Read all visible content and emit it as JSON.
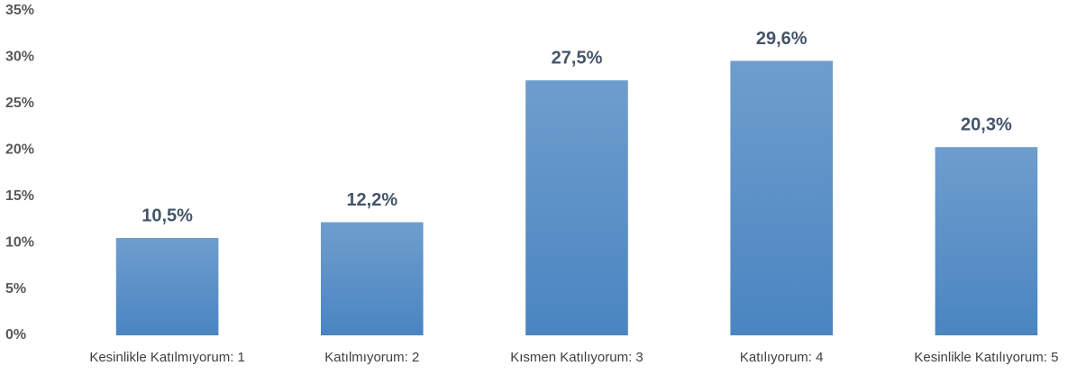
{
  "chart_data": {
    "type": "bar",
    "categories": [
      "Kesinlikle Katılmıyorum: 1",
      "Katılmıyorum: 2",
      "Kısmen Katılıyorum: 3",
      "Katılıyorum: 4",
      "Kesinlikle Katılıyorum: 5"
    ],
    "values": [
      10.5,
      12.2,
      27.5,
      29.6,
      20.3
    ],
    "value_labels": [
      "10,5%",
      "12,2%",
      "27,5%",
      "29,6%",
      "20,3%"
    ],
    "color": "#4a85c1",
    "ylim": [
      0,
      35
    ],
    "yticks": [
      {
        "value": 0,
        "label": "0%"
      },
      {
        "value": 5,
        "label": "5%"
      },
      {
        "value": 10,
        "label": "10%"
      },
      {
        "value": 15,
        "label": "15%"
      },
      {
        "value": 20,
        "label": "20%"
      },
      {
        "value": 25,
        "label": "25%"
      },
      {
        "value": 30,
        "label": "30%"
      },
      {
        "value": 35,
        "label": "35%"
      }
    ],
    "grid": false
  }
}
